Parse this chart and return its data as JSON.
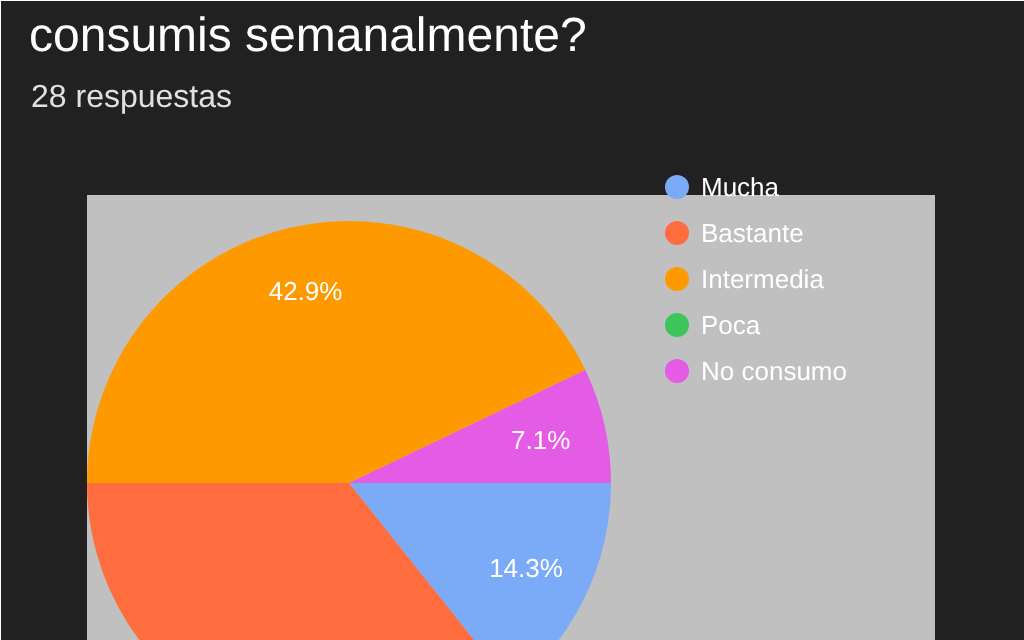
{
  "chart_data": {
    "type": "pie",
    "title": "consumis semanalmente?",
    "subtitle": "28 respuestas",
    "categories": [
      "Mucha",
      "Bastante",
      "Intermedia",
      "Poca",
      "No consumo"
    ],
    "values": [
      14.3,
      35.7,
      42.9,
      0,
      7.1
    ],
    "colors": [
      "#7baaf7",
      "#ff6d3f",
      "#ff9900",
      "#3dc45a",
      "#e45be6"
    ],
    "value_labels": [
      "14.3%",
      null,
      "42.9%",
      null,
      "7.1%"
    ],
    "legend": "right"
  }
}
